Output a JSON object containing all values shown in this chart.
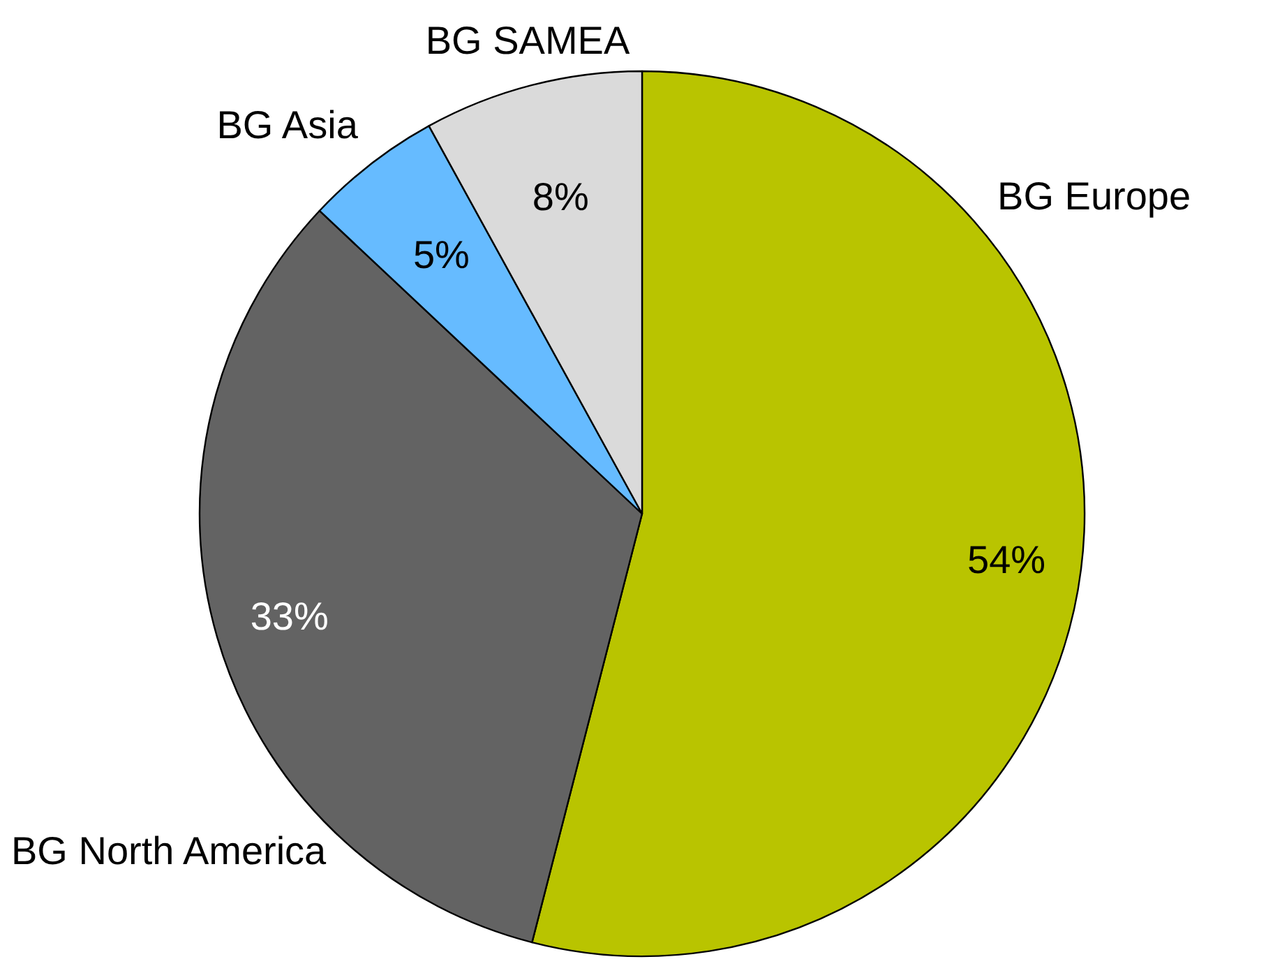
{
  "chart_data": {
    "type": "pie",
    "categories": [
      "BG Europe",
      "BG North America",
      "BG Asia",
      "BG SAMEA"
    ],
    "values": [
      54,
      33,
      5,
      8
    ],
    "colors": [
      "#b9c400",
      "#636363",
      "#66bbff",
      "#dadada"
    ],
    "value_labels": [
      "54%",
      "33%",
      "5%",
      "8%"
    ]
  }
}
